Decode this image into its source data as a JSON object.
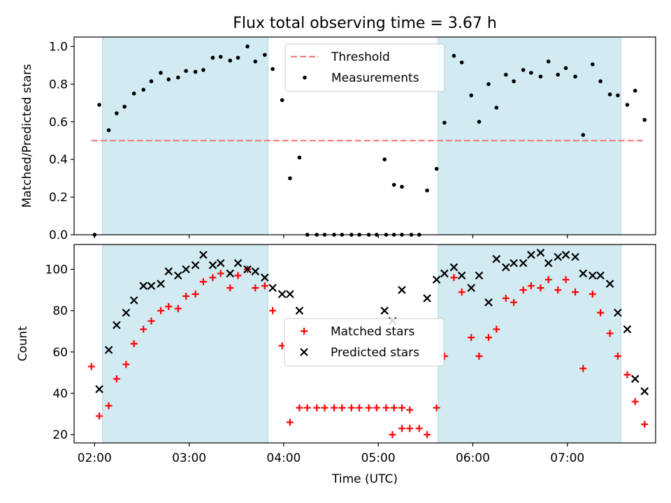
{
  "chart_data": [
    {
      "type": "scatter",
      "title": "Flux total observing time = 3.67 h",
      "ylabel": "Matched/Predicted stars",
      "ylim": [
        0,
        1.05
      ],
      "yticks": [
        "0.0",
        "0.2",
        "0.4",
        "0.6",
        "0.8",
        "1.0"
      ],
      "xticks": [
        "02:00",
        "03:00",
        "04:00",
        "05:00",
        "06:00",
        "07:00"
      ],
      "xlim": [
        "01:47",
        "07:56"
      ],
      "threshold": {
        "name": "Threshold",
        "value": 0.5,
        "color": "#f08080"
      },
      "shaded_intervals": [
        [
          "02:05",
          "03:50"
        ],
        [
          "05:38",
          "07:34"
        ]
      ],
      "shade_color": "#add8e6",
      "legend": [
        "Threshold",
        "Measurements"
      ],
      "legend_position": "upper center",
      "series": [
        {
          "name": "Measurements",
          "marker": "dot",
          "color": "#000000",
          "points": [
            [
              "02:00",
              0.0
            ],
            [
              "02:03",
              0.69
            ],
            [
              "02:09",
              0.555
            ],
            [
              "02:14",
              0.645
            ],
            [
              "02:19",
              0.68
            ],
            [
              "02:25",
              0.75
            ],
            [
              "02:31",
              0.77
            ],
            [
              "02:36",
              0.815
            ],
            [
              "02:42",
              0.86
            ],
            [
              "02:47",
              0.825
            ],
            [
              "02:53",
              0.835
            ],
            [
              "02:58",
              0.87
            ],
            [
              "03:04",
              0.865
            ],
            [
              "03:09",
              0.875
            ],
            [
              "03:15",
              0.94
            ],
            [
              "03:20",
              0.945
            ],
            [
              "03:26",
              0.925
            ],
            [
              "03:31",
              0.94
            ],
            [
              "03:37",
              1.0
            ],
            [
              "03:42",
              0.92
            ],
            [
              "03:48",
              0.955
            ],
            [
              "03:53",
              0.88
            ],
            [
              "03:59",
              0.715
            ],
            [
              "04:04",
              0.3
            ],
            [
              "04:10",
              0.41
            ],
            [
              "04:15",
              0.0
            ],
            [
              "04:21",
              0.0
            ],
            [
              "04:26",
              0.0
            ],
            [
              "04:32",
              0.0
            ],
            [
              "04:37",
              0.0
            ],
            [
              "04:43",
              0.0
            ],
            [
              "04:48",
              0.0
            ],
            [
              "04:54",
              0.0
            ],
            [
              "04:59",
              0.0
            ],
            [
              "05:05",
              0.0
            ],
            [
              "05:10",
              0.0
            ],
            [
              "05:15",
              0.0
            ],
            [
              "05:04",
              0.4
            ],
            [
              "05:10",
              0.265
            ],
            [
              "05:15",
              0.255
            ],
            [
              "05:21",
              0.0
            ],
            [
              "05:26",
              0.0
            ],
            [
              "05:31",
              0.235
            ],
            [
              "05:37",
              0.35
            ],
            [
              "05:42",
              0.595
            ],
            [
              "05:48",
              0.95
            ],
            [
              "05:53",
              0.915
            ],
            [
              "05:59",
              0.74
            ],
            [
              "06:04",
              0.6
            ],
            [
              "06:10",
              0.8
            ],
            [
              "06:15",
              0.675
            ],
            [
              "06:21",
              0.85
            ],
            [
              "06:26",
              0.815
            ],
            [
              "06:32",
              0.875
            ],
            [
              "06:37",
              0.86
            ],
            [
              "06:43",
              0.84
            ],
            [
              "06:48",
              0.92
            ],
            [
              "06:54",
              0.85
            ],
            [
              "06:59",
              0.885
            ],
            [
              "07:05",
              0.84
            ],
            [
              "07:10",
              0.53
            ],
            [
              "07:16",
              0.905
            ],
            [
              "07:21",
              0.815
            ],
            [
              "07:27",
              0.745
            ],
            [
              "07:32",
              0.74
            ],
            [
              "07:38",
              0.69
            ],
            [
              "07:43",
              0.765
            ],
            [
              "07:49",
              0.61
            ]
          ]
        }
      ]
    },
    {
      "type": "scatter",
      "xlabel": "Time (UTC)",
      "ylabel": "Count",
      "ylim": [
        16,
        112
      ],
      "yticks": [
        "20",
        "40",
        "60",
        "80",
        "100"
      ],
      "xticks": [
        "02:00",
        "03:00",
        "04:00",
        "05:00",
        "06:00",
        "07:00"
      ],
      "xlim": [
        "01:47",
        "07:56"
      ],
      "shaded_intervals": [
        [
          "02:05",
          "03:50"
        ],
        [
          "05:38",
          "07:34"
        ]
      ],
      "shade_color": "#add8e6",
      "legend": [
        "Matched stars",
        "Predicted stars"
      ],
      "legend_position": "center",
      "series": [
        {
          "name": "Matched stars",
          "marker": "plus",
          "color": "#ff0000",
          "points": [
            [
              "01:58",
              53
            ],
            [
              "02:03",
              29
            ],
            [
              "02:09",
              34
            ],
            [
              "02:14",
              47
            ],
            [
              "02:20",
              54
            ],
            [
              "02:25",
              64
            ],
            [
              "02:31",
              71
            ],
            [
              "02:36",
              75
            ],
            [
              "02:42",
              80
            ],
            [
              "02:47",
              82
            ],
            [
              "02:53",
              81
            ],
            [
              "02:58",
              87
            ],
            [
              "03:04",
              88
            ],
            [
              "03:09",
              94
            ],
            [
              "03:15",
              96
            ],
            [
              "03:20",
              98
            ],
            [
              "03:26",
              91
            ],
            [
              "03:31",
              97
            ],
            [
              "03:37",
              100
            ],
            [
              "03:42",
              91
            ],
            [
              "03:48",
              92
            ],
            [
              "03:53",
              80
            ],
            [
              "03:59",
              63
            ],
            [
              "04:04",
              26
            ],
            [
              "04:10",
              33
            ],
            [
              "04:15",
              33
            ],
            [
              "04:21",
              33
            ],
            [
              "04:26",
              33
            ],
            [
              "04:32",
              33
            ],
            [
              "04:37",
              33
            ],
            [
              "04:43",
              33
            ],
            [
              "04:48",
              33
            ],
            [
              "04:54",
              33
            ],
            [
              "04:59",
              33
            ],
            [
              "05:05",
              33
            ],
            [
              "05:10",
              33
            ],
            [
              "05:15",
              33
            ],
            [
              "05:20",
              32
            ],
            [
              "05:09",
              20
            ],
            [
              "05:15",
              23
            ],
            [
              "05:20",
              23
            ],
            [
              "05:26",
              23
            ],
            [
              "05:31",
              20
            ],
            [
              "05:37",
              33
            ],
            [
              "05:42",
              58
            ],
            [
              "05:48",
              96
            ],
            [
              "05:53",
              89
            ],
            [
              "05:59",
              67
            ],
            [
              "06:04",
              58
            ],
            [
              "06:10",
              67
            ],
            [
              "06:15",
              71
            ],
            [
              "06:21",
              86
            ],
            [
              "06:26",
              84
            ],
            [
              "06:32",
              90
            ],
            [
              "06:37",
              92
            ],
            [
              "06:43",
              91
            ],
            [
              "06:48",
              95
            ],
            [
              "06:54",
              90
            ],
            [
              "06:59",
              95
            ],
            [
              "07:05",
              89
            ],
            [
              "07:10",
              52
            ],
            [
              "07:16",
              88
            ],
            [
              "07:21",
              79
            ],
            [
              "07:27",
              69
            ],
            [
              "07:32",
              58
            ],
            [
              "07:38",
              49
            ],
            [
              "07:43",
              36
            ],
            [
              "07:49",
              25
            ]
          ]
        },
        {
          "name": "Predicted stars",
          "marker": "x",
          "color": "#000000",
          "points": [
            [
              "02:03",
              42
            ],
            [
              "02:09",
              61
            ],
            [
              "02:14",
              73
            ],
            [
              "02:20",
              79
            ],
            [
              "02:25",
              85
            ],
            [
              "02:31",
              92
            ],
            [
              "02:36",
              92
            ],
            [
              "02:42",
              93
            ],
            [
              "02:47",
              99
            ],
            [
              "02:53",
              97
            ],
            [
              "02:58",
              100
            ],
            [
              "03:04",
              102
            ],
            [
              "03:09",
              107
            ],
            [
              "03:15",
              102
            ],
            [
              "03:20",
              103
            ],
            [
              "03:26",
              98
            ],
            [
              "03:31",
              103
            ],
            [
              "03:37",
              100
            ],
            [
              "03:42",
              99
            ],
            [
              "03:48",
              96
            ],
            [
              "03:53",
              91
            ],
            [
              "03:59",
              88
            ],
            [
              "04:04",
              88
            ],
            [
              "04:10",
              80
            ],
            [
              "05:04",
              80
            ],
            [
              "05:09",
              75
            ],
            [
              "05:15",
              90
            ],
            [
              "05:31",
              86
            ],
            [
              "05:37",
              95
            ],
            [
              "05:42",
              98
            ],
            [
              "05:48",
              101
            ],
            [
              "05:53",
              97
            ],
            [
              "05:59",
              91
            ],
            [
              "06:04",
              97
            ],
            [
              "06:10",
              84
            ],
            [
              "06:15",
              105
            ],
            [
              "06:21",
              101
            ],
            [
              "06:26",
              103
            ],
            [
              "06:32",
              103
            ],
            [
              "06:37",
              107
            ],
            [
              "06:43",
              108
            ],
            [
              "06:48",
              103
            ],
            [
              "06:54",
              106
            ],
            [
              "06:59",
              107
            ],
            [
              "07:05",
              106
            ],
            [
              "07:10",
              98
            ],
            [
              "07:16",
              97
            ],
            [
              "07:21",
              97
            ],
            [
              "07:27",
              93
            ],
            [
              "07:32",
              79
            ],
            [
              "07:38",
              71
            ],
            [
              "07:43",
              47
            ],
            [
              "07:49",
              41
            ]
          ]
        }
      ]
    }
  ]
}
